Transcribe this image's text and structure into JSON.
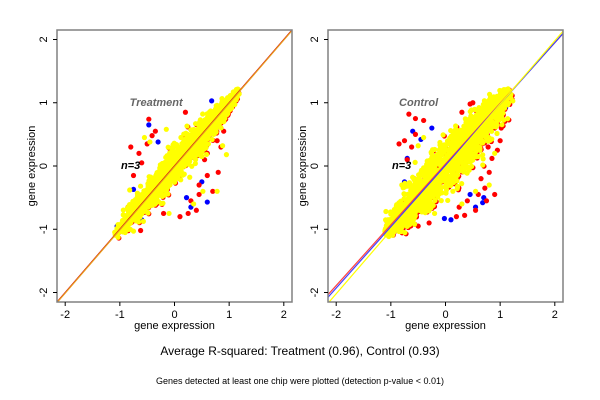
{
  "captions": {
    "main": "Average R-squared: Treatment (0.96), Control (0.93)",
    "sub": "Genes detected at least one chip were plotted (detection p-value < 0.01)"
  },
  "colors": {
    "blue": "#0000ff",
    "red": "#ff0000",
    "yellow": "#ffff00",
    "frame": "#808080",
    "line_orange": "#e8a020"
  },
  "chart_data": [
    {
      "type": "scatter",
      "title": "Treatment",
      "annotation": "n=3",
      "xlabel": "gene expression",
      "ylabel": "gene expression",
      "xlim": [
        -2.15,
        2.15
      ],
      "ylim": [
        -2.15,
        2.15
      ],
      "xticks": [
        -2,
        -1,
        0,
        1,
        2
      ],
      "yticks": [
        -2,
        -1,
        0,
        1,
        2
      ],
      "r_squared": 0.96,
      "cloud": {
        "x_range": [
          -1.1,
          1.2
        ],
        "spread": 0.12,
        "count": 1400
      },
      "series": [
        {
          "name": "blue",
          "color": "#0000ff",
          "points": [
            [
              0.68,
              1.03
            ],
            [
              -0.47,
              0.65
            ],
            [
              -0.75,
              -0.37
            ],
            [
              0.22,
              -0.5
            ],
            [
              0.5,
              -0.25
            ],
            [
              -1.05,
              -0.95
            ],
            [
              -0.6,
              -0.85
            ],
            [
              0.6,
              -0.57
            ],
            [
              -0.3,
              0.38
            ],
            [
              0.3,
              -0.65
            ]
          ]
        },
        {
          "name": "red",
          "color": "#ff0000",
          "points": [
            [
              -0.47,
              0.74
            ],
            [
              -0.41,
              0.48
            ],
            [
              -0.8,
              0.3
            ],
            [
              -0.6,
              0.05
            ],
            [
              -0.75,
              -0.15
            ],
            [
              0.75,
              0.65
            ],
            [
              0.9,
              0.55
            ],
            [
              0.78,
              0.4
            ],
            [
              0.6,
              0.2
            ],
            [
              0.8,
              -0.1
            ],
            [
              0.6,
              -0.15
            ],
            [
              0.45,
              -0.45
            ],
            [
              0.3,
              -0.55
            ],
            [
              0.25,
              -0.75
            ],
            [
              0.1,
              -0.8
            ],
            [
              -0.62,
              -1.02
            ],
            [
              0.4,
              -0.7
            ],
            [
              -0.2,
              -0.75
            ],
            [
              0.7,
              -0.4
            ],
            [
              0.55,
              0.1
            ],
            [
              -0.5,
              0.35
            ],
            [
              -0.65,
              0.2
            ],
            [
              0.85,
              0.3
            ],
            [
              -0.35,
              0.55
            ],
            [
              0.45,
              -0.3
            ],
            [
              -0.85,
              -0.65
            ],
            [
              0.2,
              0.85
            ]
          ]
        },
        {
          "name": "yellow",
          "color": "#ffff00",
          "points": [
            [
              -0.15,
              0.58
            ],
            [
              -0.45,
              0.38
            ],
            [
              -0.82,
              -0.38
            ],
            [
              0.95,
              0.18
            ],
            [
              0.78,
              -0.4
            ],
            [
              0.52,
              -0.4
            ],
            [
              -0.1,
              -0.75
            ],
            [
              -0.75,
              -1.03
            ],
            [
              0.7,
              0.55
            ],
            [
              0.88,
              0.32
            ],
            [
              0.35,
              -0.6
            ],
            [
              -0.55,
              0.45
            ],
            [
              0.62,
              0.35
            ]
          ]
        }
      ],
      "fit_lines": [
        {
          "name": "red-line",
          "color": "#cc0000",
          "slope": 1.0,
          "intercept": 0.0
        },
        {
          "name": "orange-line",
          "color": "#e8a020",
          "slope": 1.0,
          "intercept": -0.01
        }
      ]
    },
    {
      "type": "scatter",
      "title": "Control",
      "annotation": "n=3",
      "xlabel": "gene expression",
      "ylabel": "gene expression",
      "xlim": [
        -2.15,
        2.15
      ],
      "ylim": [
        -2.15,
        2.15
      ],
      "xticks": [
        -2,
        -1,
        0,
        1,
        2
      ],
      "yticks": [
        -2,
        -1,
        0,
        1,
        2
      ],
      "r_squared": 0.93,
      "cloud": {
        "x_range": [
          -1.1,
          1.2
        ],
        "spread": 0.19,
        "count": 1600
      },
      "series": [
        {
          "name": "blue",
          "color": "#0000ff",
          "points": [
            [
              -0.6,
              0.55
            ],
            [
              -0.45,
              0.42
            ],
            [
              -0.7,
              0.12
            ],
            [
              -0.25,
              0.6
            ],
            [
              0.7,
              -0.5
            ],
            [
              0.68,
              -0.58
            ],
            [
              0.1,
              -0.85
            ],
            [
              -0.02,
              -0.83
            ],
            [
              -0.75,
              -0.25
            ],
            [
              1.1,
              0.92
            ],
            [
              0.45,
              -0.45
            ],
            [
              0.55,
              -0.65
            ],
            [
              -0.85,
              -0.6
            ]
          ]
        },
        {
          "name": "red",
          "color": "#ff0000",
          "points": [
            [
              -0.67,
              0.82
            ],
            [
              -0.55,
              0.75
            ],
            [
              -0.4,
              0.72
            ],
            [
              -0.75,
              0.4
            ],
            [
              -0.62,
              0.3
            ],
            [
              -0.7,
              0.1
            ],
            [
              -0.85,
              0.35
            ],
            [
              0.45,
              0.98
            ],
            [
              0.5,
              1.0
            ],
            [
              0.9,
              0.6
            ],
            [
              1.0,
              0.4
            ],
            [
              0.95,
              0.25
            ],
            [
              0.85,
              0.12
            ],
            [
              0.8,
              -0.1
            ],
            [
              0.9,
              -0.45
            ],
            [
              0.72,
              -0.35
            ],
            [
              0.6,
              -0.45
            ],
            [
              0.55,
              -0.7
            ],
            [
              0.35,
              -0.78
            ],
            [
              0.2,
              -0.8
            ],
            [
              -0.3,
              -0.9
            ],
            [
              -0.5,
              -0.95
            ],
            [
              0.75,
              -0.55
            ],
            [
              0.4,
              -0.55
            ],
            [
              0.65,
              -0.2
            ],
            [
              1.02,
              0.6
            ],
            [
              -0.55,
              0.5
            ],
            [
              0.3,
              0.85
            ],
            [
              0.25,
              -0.65
            ],
            [
              0.78,
              0.3
            ]
          ]
        },
        {
          "name": "yellow",
          "color": "#ffff00",
          "points": [
            [
              -0.5,
              0.32
            ],
            [
              -0.8,
              -0.3
            ],
            [
              0.9,
              0.2
            ],
            [
              0.8,
              -0.3
            ],
            [
              0.55,
              -0.4
            ],
            [
              -0.4,
              0.45
            ],
            [
              -0.9,
              -0.85
            ],
            [
              0.3,
              -0.6
            ],
            [
              -0.2,
              -0.75
            ],
            [
              0.7,
              0.5
            ],
            [
              0.6,
              0.15
            ]
          ]
        }
      ],
      "fit_lines": [
        {
          "name": "red-line",
          "color": "#ff4040",
          "slope": 0.96,
          "intercept": 0.03
        },
        {
          "name": "blue-line",
          "color": "#4040ff",
          "slope": 0.97,
          "intercept": 0.01
        },
        {
          "name": "yellow-line",
          "color": "#ffff00",
          "slope": 1.0,
          "intercept": -0.02
        }
      ]
    }
  ]
}
